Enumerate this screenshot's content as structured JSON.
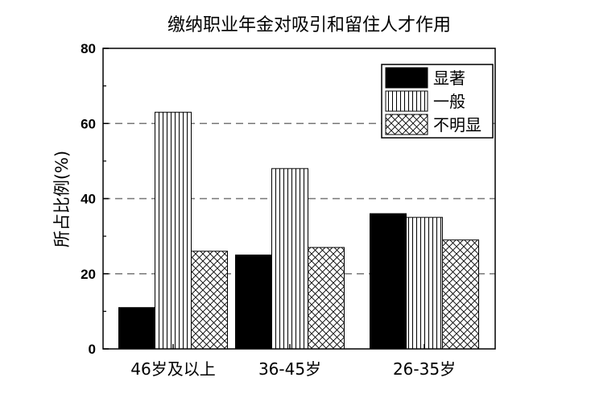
{
  "chart_data": {
    "type": "bar",
    "title": "缴纳职业年金对吸引和留住人才作用",
    "xlabel": "",
    "ylabel": "所占比例(%)",
    "categories": [
      "46岁及以上",
      "36-45岁",
      "26-35岁"
    ],
    "series": [
      {
        "name": "显著",
        "values": [
          11,
          25,
          36
        ],
        "pattern": "solid"
      },
      {
        "name": "一般",
        "values": [
          63,
          48,
          35
        ],
        "pattern": "vertical-lines"
      },
      {
        "name": "不明显",
        "values": [
          26,
          27,
          29
        ],
        "pattern": "crosshatch"
      }
    ],
    "ylim": [
      0,
      80
    ],
    "yticks": [
      0,
      20,
      40,
      60,
      80
    ],
    "grid": "horizontal-dashed",
    "legend": "top-right",
    "colors": {
      "bar_fill": "#000000",
      "bar_outline": "#000000",
      "grid": "#777777"
    }
  }
}
